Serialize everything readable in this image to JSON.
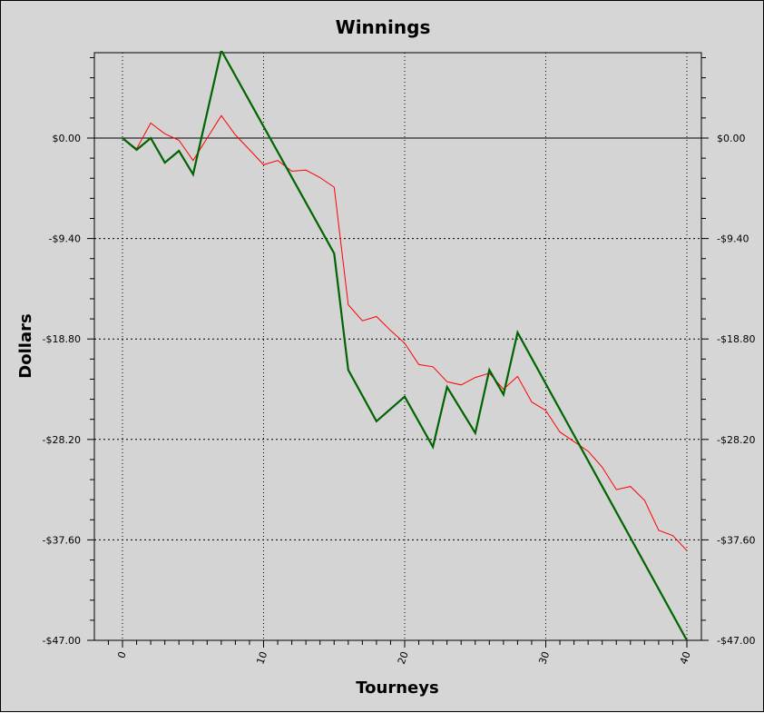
{
  "chart_data": {
    "type": "line",
    "title": "Winnings",
    "xlabel": "Tourneys",
    "ylabel": "Dollars",
    "xlim": [
      -2,
      41
    ],
    "ylim": [
      -47,
      8
    ],
    "x_ticks": [
      "0",
      "10",
      "20",
      "30",
      "40"
    ],
    "y_ticks": [
      "$0.00",
      "-$9.40",
      "-$18.80",
      "-$28.20",
      "-$37.60",
      "-$47.00"
    ],
    "grid": true,
    "plot_background": "#d4d4d4",
    "series": [
      {
        "color": "#006400",
        "x": [
          0,
          1,
          2,
          3,
          4,
          5,
          7,
          15,
          16,
          18,
          20,
          22,
          23,
          25,
          26,
          27,
          28,
          40
        ],
        "y": [
          0,
          -1.1,
          0,
          -2.3,
          -1.2,
          -3.4,
          8.2,
          -10.8,
          -21.7,
          -26.5,
          -24.2,
          -28.9,
          -23.3,
          -27.6,
          -21.7,
          -24.0,
          -18.2,
          -47.0
        ]
      },
      {
        "color": "#ff0000",
        "x": [
          0,
          1,
          2,
          3,
          4,
          5,
          6,
          7,
          8,
          9,
          10,
          11,
          12,
          13,
          14,
          15,
          16,
          17,
          18,
          19,
          20,
          21,
          22,
          23,
          24,
          25,
          26,
          27,
          28,
          29,
          30,
          31,
          32,
          33,
          34,
          35,
          36,
          37,
          38,
          39,
          40
        ],
        "y": [
          0,
          -1.0,
          1.4,
          0.4,
          -0.2,
          -2.1,
          0,
          2.1,
          0.3,
          -1.1,
          -2.5,
          -2.1,
          -3.1,
          -3.0,
          -3.7,
          -4.6,
          -15.6,
          -17.1,
          -16.7,
          -18.0,
          -19.2,
          -21.2,
          -21.4,
          -22.8,
          -23.1,
          -22.4,
          -22.0,
          -23.5,
          -22.3,
          -24.7,
          -25.5,
          -27.5,
          -28.4,
          -29.3,
          -30.8,
          -32.9,
          -32.6,
          -33.9,
          -36.7,
          -37.2,
          -38.6
        ]
      }
    ]
  }
}
